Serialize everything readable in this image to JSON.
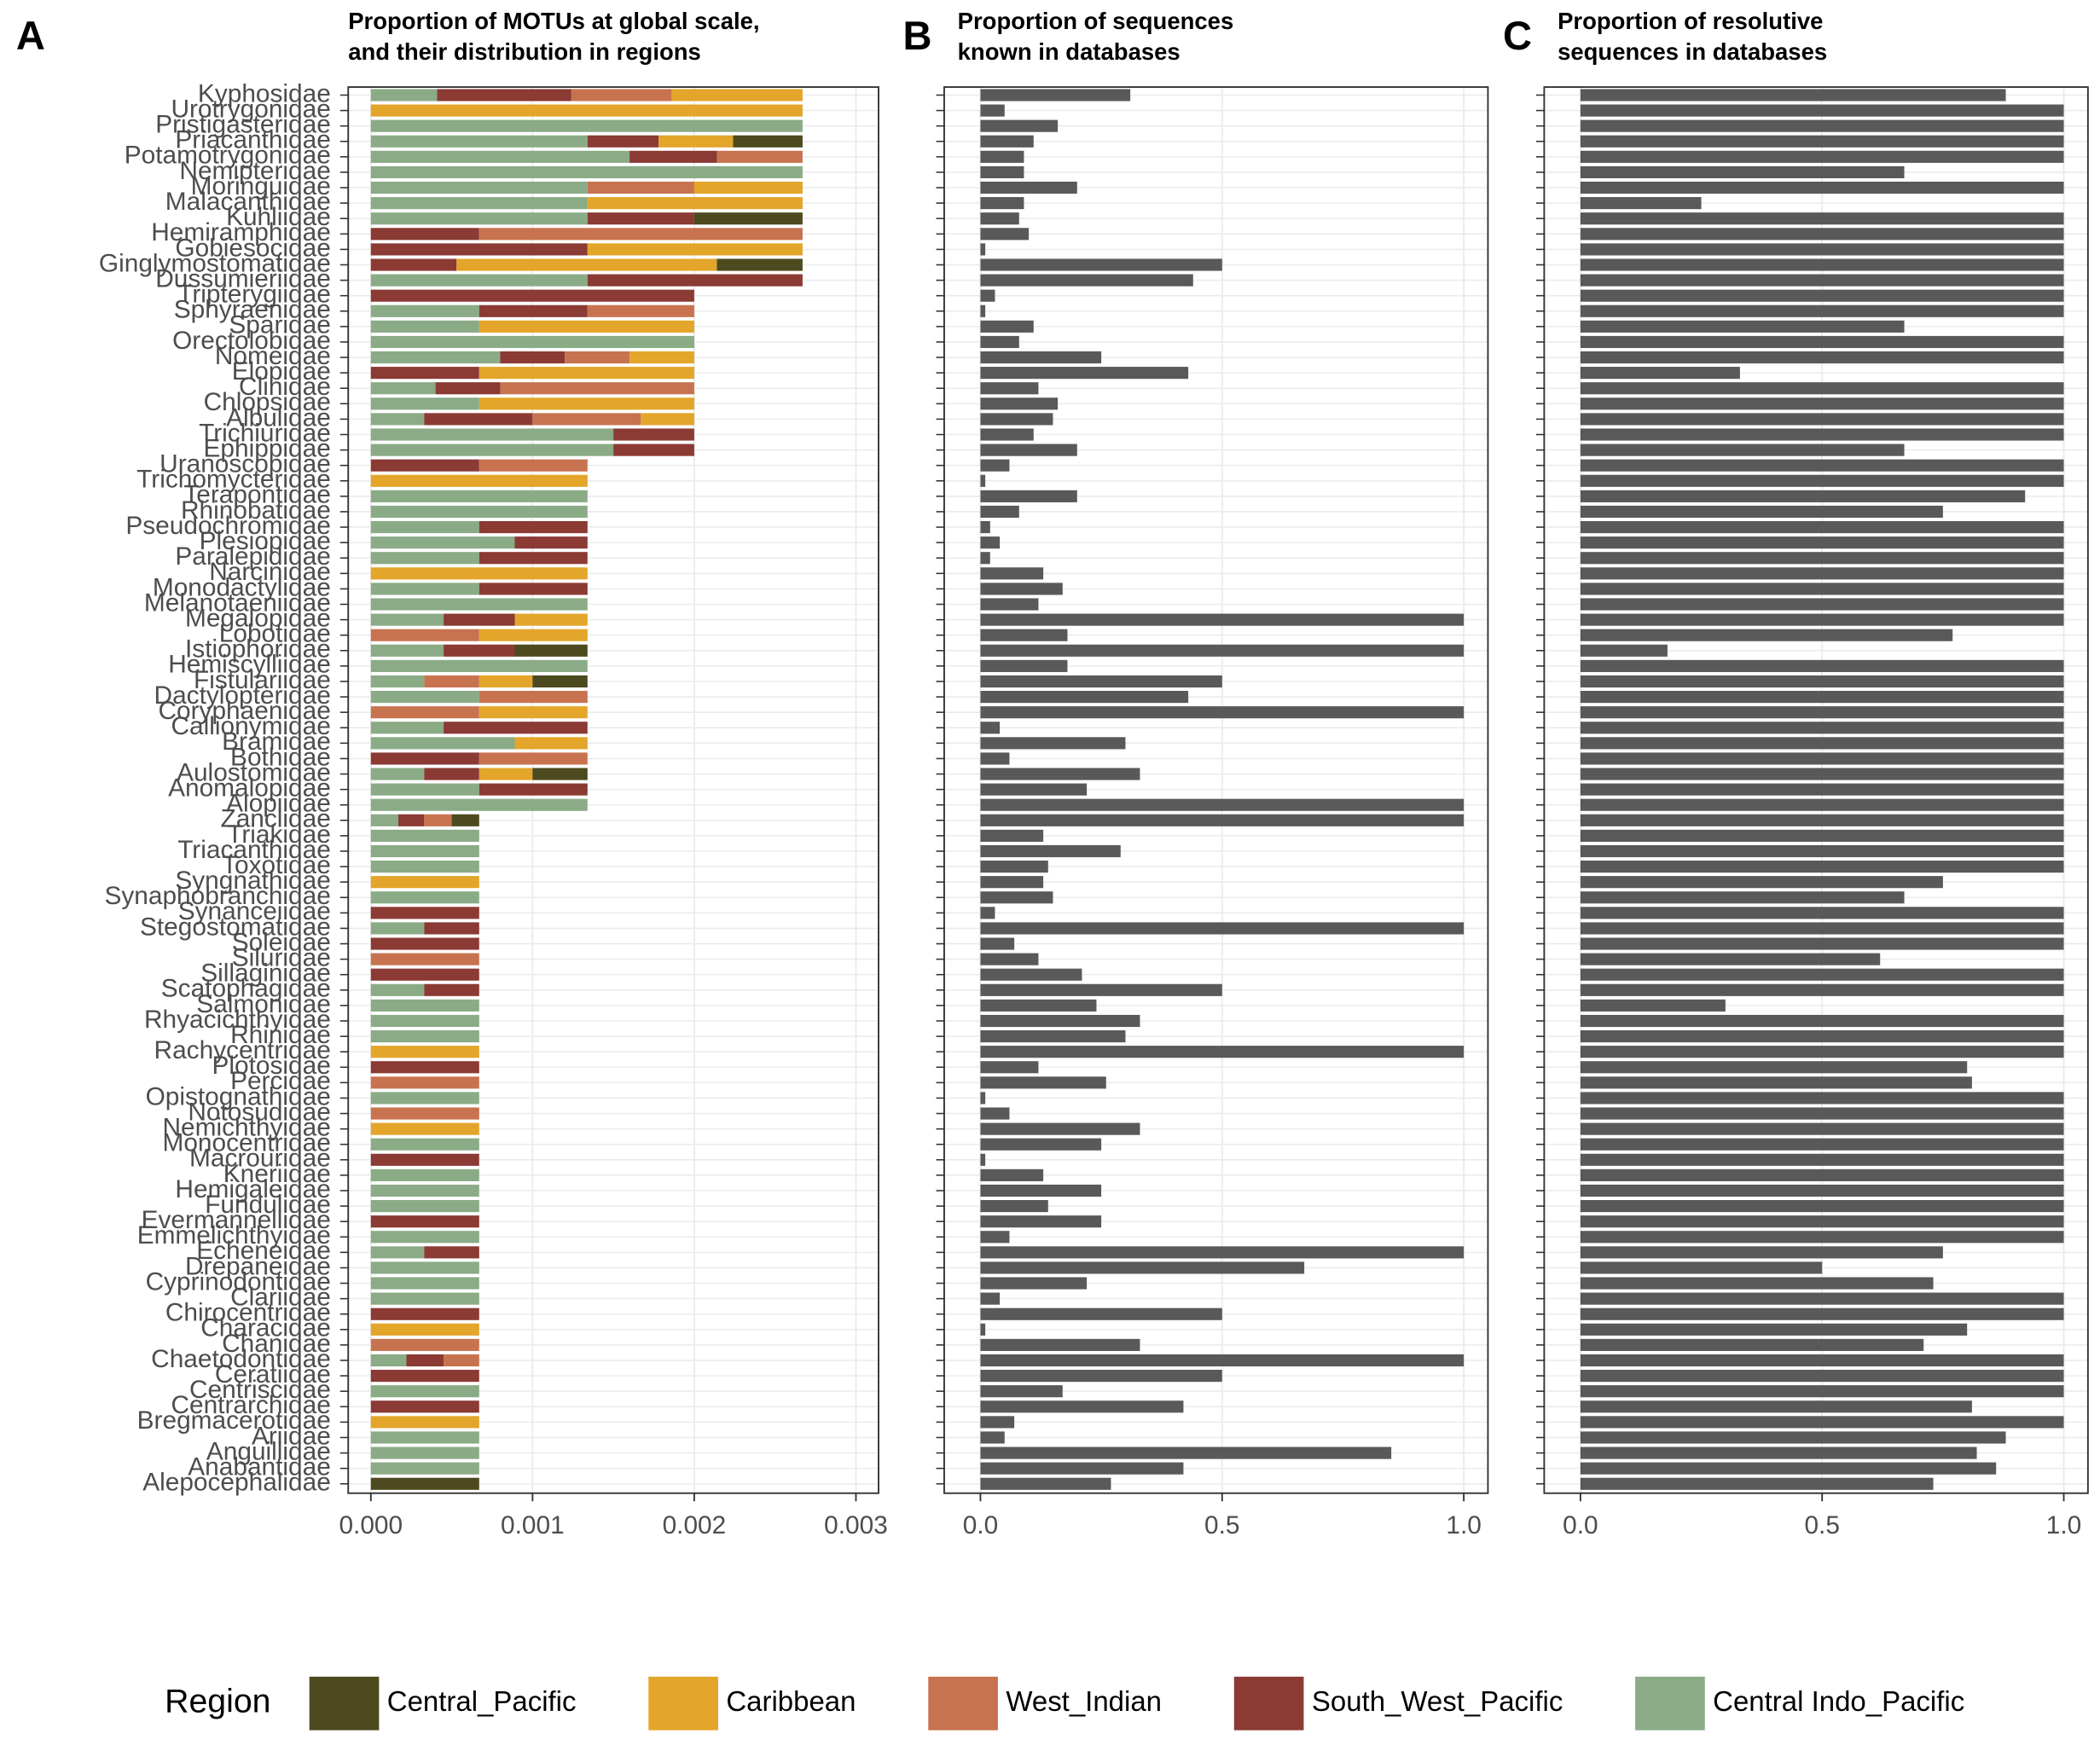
{
  "chart_data": [
    {
      "type": "bar",
      "orientation": "horizontal",
      "stacked": true,
      "panel_label": "A",
      "title": [
        "Proportion of MOTUs at global scale,",
        "and their distribution in regions"
      ],
      "categories": [
        "Kyphosidae",
        "Urotrygonidae",
        "Pristigasteridae",
        "Priacanthidae",
        "Potamotrygonidae",
        "Nemipteridae",
        "Moringuidae",
        "Malacanthidae",
        "Kuhliidae",
        "Hemiramphidae",
        "Gobiesocidae",
        "Ginglymostomatidae",
        "Dussumieriidae",
        "Tripterygiidae",
        "Sphyraenidae",
        "Sparidae",
        "Orectolobidae",
        "Nomeidae",
        "Elopidae",
        "Clinidae",
        "Chlopsidae",
        "Albulidae",
        "Trichiuridae",
        "Ephippidae",
        "Uranoscopidae",
        "Trichomycteridae",
        "Terapontidae",
        "Rhinobatidae",
        "Pseudochromidae",
        "Plesiopidae",
        "Paralepididae",
        "Narcinidae",
        "Monodactylidae",
        "Melanotaeniidae",
        "Megalopidae",
        "Lobotidae",
        "Istiophoridae",
        "Hemiscylliidae",
        "Fistulariidae",
        "Dactylopteridae",
        "Coryphaenidae",
        "Callionymidae",
        "Bramidae",
        "Bothidae",
        "Aulostomidae",
        "Anomalopidae",
        "Alopiidae",
        "Zanclidae",
        "Triakidae",
        "Triacanthidae",
        "Toxotidae",
        "Syngnathidae",
        "Synaphobranchidae",
        "Synanceiidae",
        "Stegostomatidae",
        "Soleidae",
        "Siluridae",
        "Sillaginidae",
        "Scatophagidae",
        "Salmonidae",
        "Rhyacichthyidae",
        "Rhinidae",
        "Rachycentridae",
        "Plotosidae",
        "Percidae",
        "Opistognathidae",
        "Notosudidae",
        "Nemichthyidae",
        "Monocentridae",
        "Macrouridae",
        "Kneriidae",
        "Hemigaleidae",
        "Fundulidae",
        "Evermannellidae",
        "Emmelichthyidae",
        "Echeneidae",
        "Drepaneidae",
        "Cyprinodontidae",
        "Clariidae",
        "Chirocentridae",
        "Characidae",
        "Chanidae",
        "Chaetodontidae",
        "Ceratiidae",
        "Centriscidae",
        "Centrarchidae",
        "Bregmacerotidae",
        "Ariidae",
        "Anguillidae",
        "Anabantidae",
        "Alepocephalidae"
      ],
      "legend_title": "Region",
      "legend": "bottom",
      "grid": true,
      "xlim": [
        -0.00014,
        0.00314
      ],
      "xticks": [
        {
          "value": 0,
          "label": "0.000"
        },
        {
          "value": 0.001,
          "label": "0.001"
        },
        {
          "value": 0.002,
          "label": "0.002"
        },
        {
          "value": 0.003,
          "label": "0.003"
        }
      ],
      "series": [
        {
          "name": "Central_Pacific",
          "color": "#4d4a1f",
          "values": [
            0,
            0,
            0,
            0.00043,
            0,
            0,
            0,
            0,
            0.00067,
            0,
            0,
            0.00053,
            0,
            0,
            0,
            0,
            0,
            0,
            0,
            0,
            0,
            0,
            0,
            0,
            0,
            0,
            0,
            0,
            0,
            0,
            0,
            0,
            0,
            0,
            0,
            0,
            0.00045,
            0,
            0.00034,
            0,
            0,
            0,
            0,
            0,
            0.00034,
            0,
            0,
            0.00017,
            0,
            0,
            0,
            0,
            0,
            0,
            0,
            0,
            0,
            0,
            0,
            0,
            0,
            0,
            0,
            0,
            0,
            0,
            0,
            0,
            0,
            0,
            0,
            0,
            0,
            0,
            0,
            0,
            0,
            0,
            0,
            0,
            0,
            0,
            0,
            0,
            0,
            0,
            0,
            0,
            0,
            0,
            0.00067
          ]
        },
        {
          "name": "Caribbean",
          "color": "#e3a52a",
          "values": [
            0.00081,
            0.00267,
            0,
            0.00046,
            0,
            0,
            0.00067,
            0.00133,
            0,
            0,
            0.00133,
            0.00161,
            0,
            0,
            0,
            0.00133,
            0,
            0.0004,
            0.00133,
            0,
            0.00133,
            0.00033,
            0,
            0,
            0,
            0.00134,
            0,
            0,
            0,
            0,
            0,
            0.00134,
            0,
            0,
            0.00045,
            0.00067,
            0,
            0,
            0.00033,
            0,
            0.00067,
            0,
            0.00045,
            0,
            0.00033,
            0,
            0,
            0,
            0,
            0,
            0,
            0.00067,
            0,
            0,
            0,
            0,
            0,
            0,
            0,
            0,
            0,
            0,
            0.00067,
            0,
            0,
            0,
            0,
            0.00067,
            0,
            0,
            0,
            0,
            0,
            0,
            0,
            0,
            0,
            0,
            0,
            0,
            0.00067,
            0,
            0,
            0,
            0,
            0,
            0.00067,
            0,
            0,
            0,
            0
          ]
        },
        {
          "name": "West_Indian",
          "color": "#c87350",
          "values": [
            0.00062,
            0,
            0,
            0,
            0.00053,
            0,
            0.00066,
            0,
            0,
            0.002,
            0,
            0,
            0,
            0,
            0.00066,
            0,
            0,
            0.0004,
            0,
            0.0012,
            0,
            0.00067,
            0,
            0,
            0.00067,
            0,
            0,
            0,
            0,
            0,
            0,
            0,
            0,
            0,
            0,
            0.00067,
            0,
            0,
            0.00034,
            0.00067,
            0.00067,
            0,
            0,
            0.00067,
            0,
            0,
            0,
            0.00017,
            0,
            0,
            0,
            0,
            0,
            0,
            0,
            0,
            0.00067,
            0,
            0,
            0,
            0,
            0,
            0,
            0,
            0.00067,
            0,
            0.00067,
            0,
            0,
            0,
            0,
            0,
            0,
            0,
            0,
            0,
            0,
            0,
            0,
            0,
            0,
            0.00067,
            0.00022,
            0,
            0,
            0,
            0,
            0,
            0,
            0,
            0
          ]
        },
        {
          "name": "South_West_Pacific",
          "color": "#8b3a34",
          "values": [
            0.00083,
            0,
            0,
            0.00044,
            0.00054,
            0,
            0,
            0,
            0.00066,
            0.00067,
            0.00134,
            0.00053,
            0.00133,
            0.002,
            0.00067,
            0,
            0,
            0.0004,
            0.00067,
            0.0004,
            0,
            0.00067,
            0.0005,
            0.0005,
            0.00067,
            0,
            0,
            0,
            0.00067,
            0.00045,
            0.00067,
            0,
            0.00067,
            0,
            0.00044,
            0,
            0.00044,
            0,
            0,
            0,
            0,
            0.00089,
            0,
            0.00067,
            0.00034,
            0.00067,
            0,
            0.00016,
            0,
            0,
            0,
            0,
            0,
            0.00067,
            0.00034,
            0.00067,
            0,
            0.00067,
            0.00034,
            0,
            0,
            0,
            0,
            0.00067,
            0,
            0,
            0,
            0,
            0,
            0.00067,
            0,
            0,
            0,
            0.00067,
            0,
            0.00034,
            0,
            0,
            0,
            0.00067,
            0,
            0,
            0.00023,
            0.00067,
            0,
            0.00067,
            0,
            0,
            0,
            0,
            0
          ]
        },
        {
          "name": "Central Indo_Pacific",
          "color": "#8aab86",
          "values": [
            0.00041,
            0,
            0.00267,
            0.00134,
            0.0016,
            0.00267,
            0.00134,
            0.00134,
            0.00134,
            0,
            0,
            0,
            0.00134,
            0,
            0.00067,
            0.00067,
            0.002,
            0.0008,
            0,
            0.0004,
            0.00067,
            0.00033,
            0.0015,
            0.0015,
            0,
            0,
            0.00134,
            0.00134,
            0.00067,
            0.00089,
            0.00067,
            0,
            0.00067,
            0.00134,
            0.00045,
            0,
            0.00045,
            0.00134,
            0.00033,
            0.00067,
            0,
            0.00045,
            0.00089,
            0,
            0.00033,
            0.00067,
            0.00134,
            0.00017,
            0.00067,
            0.00067,
            0.00067,
            0,
            0.00067,
            0,
            0.00033,
            0,
            0,
            0,
            0.00033,
            0.00067,
            0.00067,
            0.00067,
            0,
            0,
            0,
            0.00067,
            0,
            0,
            0.00067,
            0,
            0.00067,
            0.00067,
            0.00067,
            0,
            0.00067,
            0.00033,
            0.00067,
            0.00067,
            0.00067,
            0,
            0,
            0,
            0.00022,
            0,
            0.00067,
            0,
            0,
            0.00067,
            0.00067,
            0.00067,
            0
          ]
        }
      ]
    },
    {
      "type": "bar",
      "orientation": "horizontal",
      "panel_label": "B",
      "title": [
        "Proportion of sequences",
        "known in databases"
      ],
      "color": "#595959",
      "grid": true,
      "xlim": [
        -0.075,
        1.05
      ],
      "xticks": [
        {
          "value": 0,
          "label": "0.0"
        },
        0.5,
        {
          "value": 1,
          "label": "1.0"
        }
      ],
      "values": [
        0.31,
        0.05,
        0.16,
        0.11,
        0.09,
        0.09,
        0.2,
        0.09,
        0.08,
        0.1,
        0.01,
        0.5,
        0.44,
        0.03,
        0.01,
        0.11,
        0.08,
        0.25,
        0.43,
        0.12,
        0.16,
        0.15,
        0.11,
        0.2,
        0.06,
        0.01,
        0.2,
        0.08,
        0.02,
        0.04,
        0.02,
        0.13,
        0.17,
        0.12,
        1,
        0.18,
        1,
        0.18,
        0.5,
        0.43,
        1,
        0.04,
        0.3,
        0.06,
        0.33,
        0.22,
        1,
        1,
        0.13,
        0.29,
        0.14,
        0.13,
        0.15,
        0.03,
        1,
        0.07,
        0.12,
        0.21,
        0.5,
        0.24,
        0.33,
        0.3,
        1,
        0.12,
        0.26,
        0.01,
        0.06,
        0.33,
        0.25,
        0.01,
        0.13,
        0.25,
        0.14,
        0.25,
        0.06,
        1,
        0.67,
        0.22,
        0.04,
        0.5,
        0.01,
        0.33,
        1,
        0.5,
        0.17,
        0.42,
        0.07,
        0.05,
        0.85,
        0.42,
        0.27
      ]
    },
    {
      "type": "bar",
      "orientation": "horizontal",
      "panel_label": "C",
      "title": [
        "Proportion of resolutive",
        "sequences in databases"
      ],
      "color": "#595959",
      "grid": true,
      "xlim": [
        -0.075,
        1.05
      ],
      "xticks": [
        {
          "value": 0,
          "label": "0.0"
        },
        0.5,
        {
          "value": 1,
          "label": "1.0"
        }
      ],
      "values": [
        0.88,
        1,
        1,
        1,
        1,
        0.67,
        1,
        0.25,
        1,
        1,
        1,
        1,
        1,
        1,
        1,
        0.67,
        1,
        1,
        0.33,
        1,
        1,
        1,
        1,
        0.67,
        1,
        1,
        0.92,
        0.75,
        1,
        1,
        1,
        1,
        1,
        1,
        1,
        0.77,
        0.18,
        1,
        1,
        1,
        1,
        1,
        1,
        1,
        1,
        1,
        1,
        1,
        1,
        1,
        1,
        0.75,
        0.67,
        1,
        1,
        1,
        0.62,
        1,
        1,
        0.3,
        1,
        1,
        1,
        0.8,
        0.81,
        1,
        1,
        1,
        1,
        1,
        1,
        1,
        1,
        1,
        1,
        0.75,
        0.5,
        0.73,
        1,
        1,
        0.8,
        0.71,
        1,
        1,
        1,
        0.81,
        1,
        0.88,
        0.82,
        0.86,
        0.73
      ]
    }
  ]
}
